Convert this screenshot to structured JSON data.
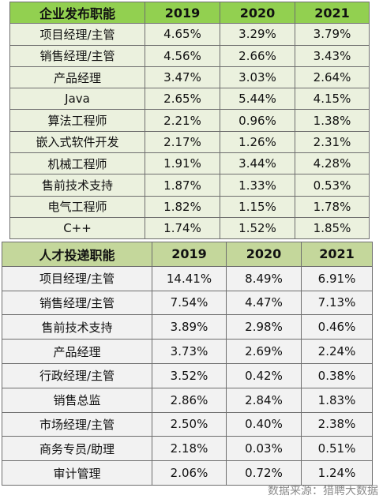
{
  "table1": {
    "headers": [
      "企业发布职能",
      "2019",
      "2020",
      "2021"
    ],
    "rows": [
      [
        "项目经理/主管",
        "4.65%",
        "3.29%",
        "3.79%"
      ],
      [
        "销售经理/主管",
        "4.56%",
        "2.66%",
        "3.43%"
      ],
      [
        "产品经理",
        "3.47%",
        "3.03%",
        "2.64%"
      ],
      [
        "Java",
        "2.65%",
        "5.44%",
        "4.15%"
      ],
      [
        "算法工程师",
        "2.21%",
        "0.96%",
        "1.38%"
      ],
      [
        "嵌入式软件开发",
        "2.17%",
        "1.26%",
        "2.31%"
      ],
      [
        "机械工程师",
        "1.91%",
        "3.44%",
        "4.28%"
      ],
      [
        "售前技术支持",
        "1.87%",
        "1.33%",
        "0.53%"
      ],
      [
        "电气工程师",
        "1.82%",
        "1.15%",
        "1.78%"
      ],
      [
        "C++",
        "1.74%",
        "1.52%",
        "1.85%"
      ]
    ]
  },
  "table2": {
    "headers": [
      "人才投递职能",
      "2019",
      "2020",
      "2021"
    ],
    "rows": [
      [
        "项目经理/主管",
        "14.41%",
        "8.49%",
        "6.91%"
      ],
      [
        "销售经理/主管",
        "7.54%",
        "4.47%",
        "7.13%"
      ],
      [
        "售前技术支持",
        "3.89%",
        "2.98%",
        "0.46%"
      ],
      [
        "产品经理",
        "3.73%",
        "2.69%",
        "2.24%"
      ],
      [
        "行政经理/主管",
        "3.52%",
        "0.42%",
        "0.38%"
      ],
      [
        "销售总监",
        "2.86%",
        "2.84%",
        "1.83%"
      ],
      [
        "市场经理/主管",
        "2.50%",
        "0.40%",
        "2.38%"
      ],
      [
        "商务专员/助理",
        "2.18%",
        "0.03%",
        "0.51%"
      ],
      [
        "审计管理",
        "2.06%",
        "0.72%",
        "1.24%"
      ]
    ]
  },
  "source": "数据来源：猎聘大数据",
  "colors": {
    "table1_header": "#92d050",
    "table1_body": "#ebf1de",
    "table2_header": "#c4d79b",
    "table2_body": "#f2f2f2",
    "source_text": "#8c8c8c"
  }
}
